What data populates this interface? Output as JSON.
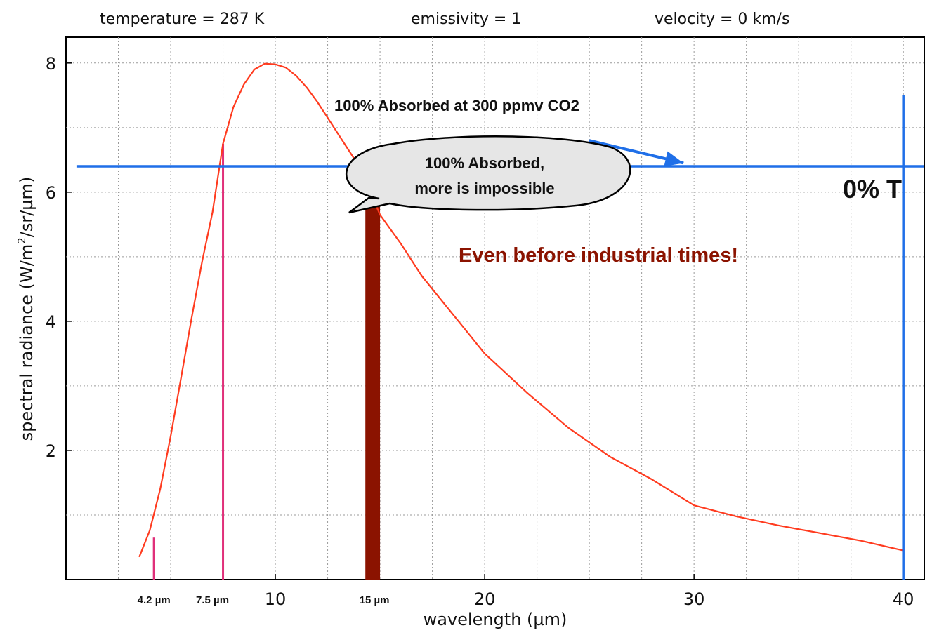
{
  "header": {
    "temperature": "temperature = 287 K",
    "emissivity": "emissivity = 1",
    "velocity": "velocity = 0 km/s"
  },
  "chart_data": {
    "type": "line",
    "xlabel": "wavelength (µm)",
    "ylabel_main": "spectral radiance (W/m",
    "ylabel_sup": "2",
    "ylabel_tail": "/sr/µm)",
    "xlim": [
      0,
      41
    ],
    "ylim": [
      0,
      8.4
    ],
    "x_ticks": [
      {
        "value": 10,
        "label": "10"
      },
      {
        "value": 20,
        "label": "20"
      },
      {
        "value": 30,
        "label": "30"
      },
      {
        "value": 40,
        "label": "40"
      }
    ],
    "x_minor_labels": [
      {
        "value": 4.2,
        "label": "4.2 µm"
      },
      {
        "value": 7.5,
        "label": "7.5 µm"
      },
      {
        "value": 15,
        "label": "15 µm"
      }
    ],
    "y_ticks": [
      {
        "value": 2,
        "label": "2"
      },
      {
        "value": 4,
        "label": "4"
      },
      {
        "value": 6,
        "label": "6"
      },
      {
        "value": 8,
        "label": "8"
      }
    ],
    "x_grid": [
      2.5,
      5,
      7.5,
      10,
      12.5,
      15,
      17.5,
      20,
      22.5,
      25,
      27.5,
      30,
      32.5,
      35,
      37.5,
      40
    ],
    "y_grid": [
      1,
      2,
      3,
      4,
      5,
      6,
      7,
      8
    ],
    "grid": true,
    "series": [
      {
        "color": "#ff3b1f",
        "x": [
          3.5,
          4,
          4.5,
          5,
          5.5,
          6,
          6.5,
          7,
          7.5,
          8,
          8.5,
          9,
          9.5,
          10,
          10.5,
          11,
          11.5,
          12,
          13,
          14,
          15,
          16,
          17,
          18,
          19,
          20,
          22,
          24,
          26,
          28,
          30,
          32,
          34,
          36,
          38,
          40
        ],
        "y": [
          0.35,
          0.76,
          1.4,
          2.22,
          3.13,
          4.05,
          4.92,
          5.69,
          6.75,
          7.32,
          7.67,
          7.9,
          7.99,
          7.98,
          7.93,
          7.8,
          7.62,
          7.4,
          6.9,
          6.4,
          5.65,
          5.2,
          4.7,
          4.3,
          3.9,
          3.5,
          2.9,
          2.35,
          1.9,
          1.55,
          1.15,
          0.98,
          0.84,
          0.72,
          0.6,
          0.45
        ]
      }
    ],
    "markers": [
      {
        "x": 4.2,
        "y0": 0,
        "y1": 0.65,
        "color": "#e0307a"
      },
      {
        "x": 7.5,
        "y0": 0,
        "y1": 6.75,
        "color": "#e0307a"
      }
    ],
    "band": {
      "x0": 14.3,
      "x1": 15.0,
      "y0": 0,
      "y1": 5.9,
      "color": "#8b1300"
    },
    "hline": {
      "y": 6.4,
      "x0": 0.5,
      "x1": 41.0,
      "color": "#1f6fe8"
    },
    "vline": {
      "x": 40,
      "y0": 0,
      "y1": 7.5,
      "color": "#1f6fe8"
    },
    "arrow": {
      "x0": 25,
      "y0": 6.8,
      "x1": 29.5,
      "y1": 6.45,
      "color": "#1f6fe8"
    }
  },
  "annotations": {
    "absorbed_300": "100% Absorbed at 300 ppmv CO2",
    "bubble_line1": "100% Absorbed,",
    "bubble_line2": "more is impossible",
    "zero_t": "0% T",
    "industrial": "Even before industrial times!"
  },
  "colors": {
    "curve": "#ff3b1f",
    "marker": "#e0307a",
    "band": "#8b1300",
    "blue": "#1f6fe8",
    "industrial_text": "#8b1300",
    "bubble_fill": "#e6e6e6"
  }
}
